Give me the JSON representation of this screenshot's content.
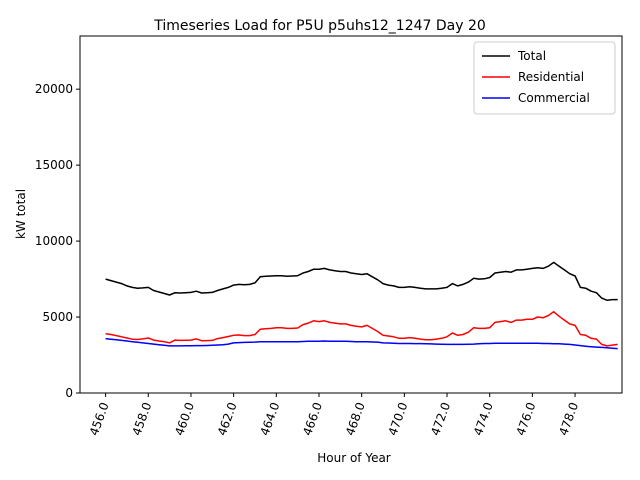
{
  "chart_data": {
    "type": "line",
    "title": "Timeseries Load for P5U p5uhs12_1247  Day 20",
    "xlabel": "Hour of Year",
    "ylabel": "kW total",
    "xlim": [
      454.8,
      480.2
    ],
    "ylim": [
      0,
      23500
    ],
    "x_ticks": [
      456.0,
      458.0,
      460.0,
      462.0,
      464.0,
      466.0,
      468.0,
      470.0,
      472.0,
      474.0,
      476.0,
      478.0
    ],
    "x_tick_labels": [
      "456.0",
      "458.0",
      "460.0",
      "462.0",
      "464.0",
      "466.0",
      "468.0",
      "470.0",
      "472.0",
      "474.0",
      "476.0",
      "478.0"
    ],
    "y_ticks": [
      0,
      5000,
      10000,
      15000,
      20000
    ],
    "y_tick_labels": [
      "0",
      "5000",
      "10000",
      "15000",
      "20000"
    ],
    "legend_position": "top-right",
    "grid": false,
    "x_start": 456.0,
    "x_step": 0.25,
    "series": [
      {
        "name": "Total",
        "color": "#000000",
        "values": [
          7500,
          7400,
          7300,
          7200,
          7050,
          6950,
          6900,
          6920,
          6950,
          6750,
          6650,
          6550,
          6450,
          6600,
          6580,
          6600,
          6620,
          6700,
          6580,
          6600,
          6620,
          6750,
          6850,
          6950,
          7100,
          7150,
          7120,
          7150,
          7250,
          7650,
          7680,
          7700,
          7720,
          7720,
          7680,
          7700,
          7720,
          7900,
          8000,
          8150,
          8150,
          8200,
          8100,
          8050,
          8000,
          8000,
          7900,
          7850,
          7800,
          7850,
          7650,
          7450,
          7200,
          7100,
          7050,
          6950,
          6950,
          7000,
          6950,
          6900,
          6850,
          6850,
          6850,
          6900,
          6950,
          7200,
          7050,
          7150,
          7300,
          7550,
          7500,
          7520,
          7600,
          7900,
          7950,
          8000,
          7950,
          8100,
          8100,
          8150,
          8200,
          8250,
          8200,
          8350,
          8600,
          8350,
          8100,
          7850,
          7700,
          6950,
          6900,
          6700,
          6600,
          6250,
          6100,
          6150,
          6150
        ]
      },
      {
        "name": "Residential",
        "color": "#ff0000",
        "values": [
          3900,
          3850,
          3780,
          3700,
          3620,
          3540,
          3520,
          3560,
          3620,
          3480,
          3420,
          3380,
          3300,
          3480,
          3460,
          3470,
          3480,
          3560,
          3440,
          3450,
          3460,
          3580,
          3650,
          3720,
          3800,
          3820,
          3780,
          3780,
          3850,
          4200,
          4230,
          4250,
          4300,
          4300,
          4250,
          4250,
          4280,
          4500,
          4600,
          4750,
          4700,
          4750,
          4650,
          4600,
          4550,
          4550,
          4450,
          4400,
          4350,
          4450,
          4250,
          4050,
          3800,
          3750,
          3700,
          3600,
          3600,
          3650,
          3600,
          3550,
          3500,
          3500,
          3550,
          3600,
          3700,
          3950,
          3800,
          3850,
          4000,
          4300,
          4250,
          4250,
          4300,
          4650,
          4700,
          4750,
          4650,
          4800,
          4800,
          4850,
          4850,
          5000,
          4950,
          5100,
          5350,
          5050,
          4800,
          4550,
          4450,
          3850,
          3800,
          3600,
          3550,
          3200,
          3100,
          3150,
          3200
        ]
      },
      {
        "name": "Commercial",
        "color": "#0000ff",
        "values": [
          3580,
          3540,
          3500,
          3460,
          3420,
          3380,
          3340,
          3300,
          3260,
          3220,
          3180,
          3140,
          3100,
          3100,
          3100,
          3110,
          3110,
          3120,
          3120,
          3130,
          3140,
          3160,
          3180,
          3220,
          3300,
          3320,
          3330,
          3340,
          3350,
          3380,
          3380,
          3380,
          3370,
          3370,
          3370,
          3370,
          3380,
          3390,
          3400,
          3410,
          3410,
          3420,
          3410,
          3410,
          3400,
          3400,
          3390,
          3380,
          3370,
          3370,
          3360,
          3350,
          3300,
          3290,
          3280,
          3260,
          3260,
          3260,
          3250,
          3250,
          3240,
          3230,
          3220,
          3210,
          3200,
          3200,
          3200,
          3200,
          3210,
          3220,
          3240,
          3260,
          3260,
          3270,
          3270,
          3270,
          3280,
          3280,
          3280,
          3280,
          3280,
          3280,
          3260,
          3260,
          3240,
          3240,
          3220,
          3200,
          3160,
          3120,
          3080,
          3050,
          3020,
          3000,
          2980,
          2950,
          2920
        ]
      }
    ]
  }
}
